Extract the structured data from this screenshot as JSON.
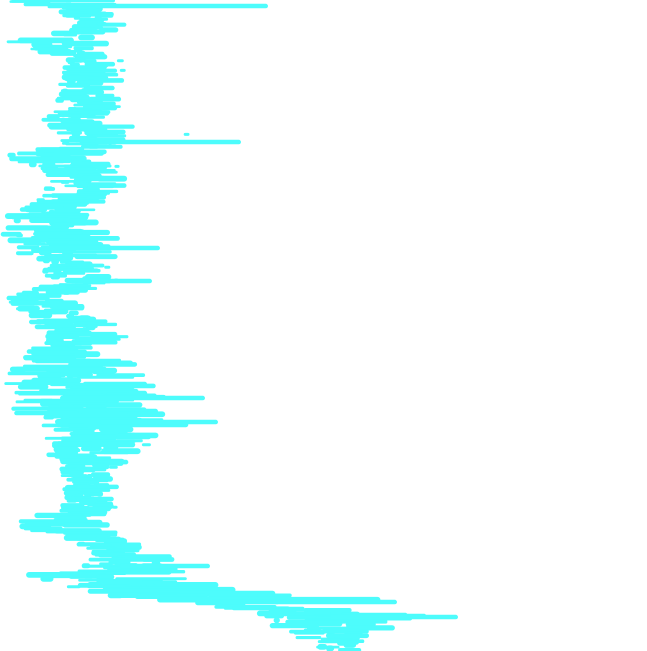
{
  "background": "#ffffff",
  "stroke_color": "#4dfcfc",
  "artwork": "cyan-horizontal-streak-texture"
}
